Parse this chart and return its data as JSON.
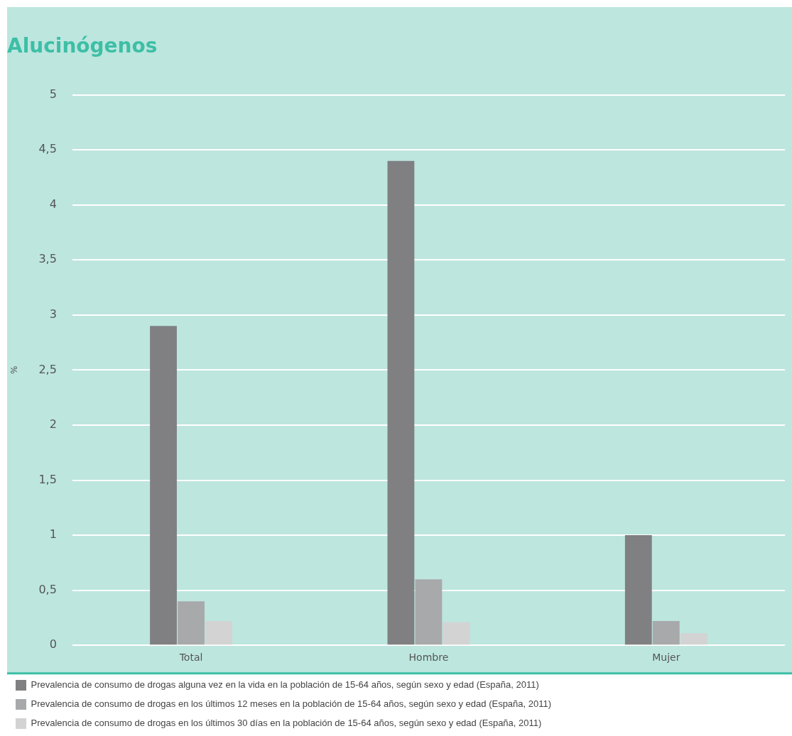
{
  "chart_data": {
    "type": "bar",
    "title": "Alucinógenos",
    "ylabel": "%",
    "categories": [
      "Total",
      "Hombre",
      "Mujer"
    ],
    "series": [
      {
        "name": "Prevalencia de consumo de drogas alguna vez en la vida en la población de 15-64 años, según sexo y edad (España, 2011)",
        "color": "#808083",
        "values": [
          2.9,
          4.4,
          1.0
        ]
      },
      {
        "name": "Prevalencia de consumo de drogas en los últimos 12 meses en la población de 15-64 años, según sexo y edad (España, 2011)",
        "color": "#a8a9ab",
        "values": [
          0.4,
          0.6,
          0.22
        ]
      },
      {
        "name": "Prevalencia de consumo de drogas en los últimos 30 días en la población de 15-64 años, según sexo y edad (España, 2011)",
        "color": "#d3d3d3",
        "values": [
          0.22,
          0.21,
          0.11
        ]
      }
    ],
    "ylim": [
      0,
      5
    ],
    "yticks": [
      0,
      {
        "value": 0.5,
        "label": "0,5"
      },
      1,
      {
        "value": 1.5,
        "label": "1,5"
      },
      2,
      {
        "value": 2.5,
        "label": "2,5"
      },
      3,
      {
        "value": 3.5,
        "label": "3,5"
      },
      4,
      {
        "value": 4.5,
        "label": "4,5"
      },
      5
    ],
    "grid": "y",
    "legend": "bottom"
  }
}
